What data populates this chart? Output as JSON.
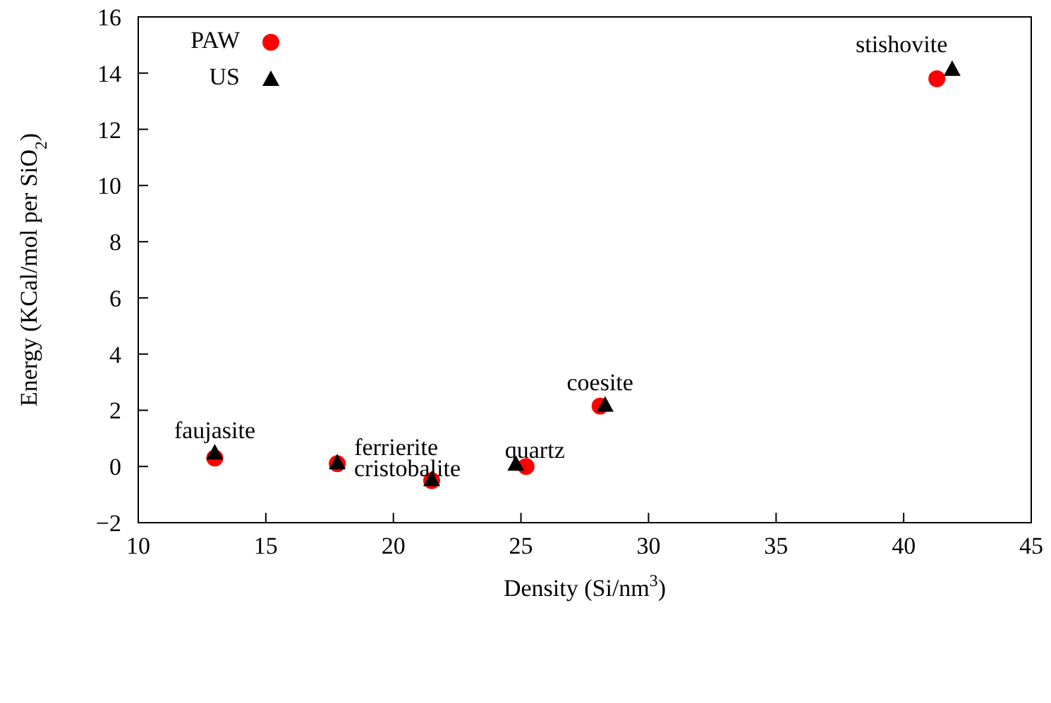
{
  "chart_data": {
    "type": "scatter",
    "xlabel": "Density (Si/nm$^{3}$)",
    "ylabel": "Energy (KCal/mol per SiO$_{2}$)",
    "xlim": [
      10,
      45
    ],
    "xticks": [
      10,
      15,
      20,
      25,
      30,
      35,
      40,
      45
    ],
    "ylim": [
      -2,
      16
    ],
    "yticks": [
      -2,
      0,
      2,
      4,
      6,
      8,
      10,
      12,
      14,
      16
    ],
    "grid": false,
    "legend": "top left",
    "series": [
      {
        "name": "PAW",
        "color": "#ff0000",
        "marker": "circle",
        "x": [
          13.0,
          17.8,
          21.5,
          25.2,
          28.1,
          41.3
        ],
        "values": [
          0.3,
          0.1,
          -0.5,
          0.0,
          2.15,
          13.8
        ]
      },
      {
        "name": "US",
        "color": "#000000",
        "marker": "triangle",
        "x": [
          13.0,
          17.8,
          21.5,
          24.8,
          28.3,
          41.9
        ],
        "values": [
          0.5,
          0.15,
          -0.45,
          0.1,
          2.2,
          14.15
        ]
      }
    ],
    "annotations": [
      {
        "text": "faujasite",
        "x": 13.0,
        "y": 0.5
      },
      {
        "text": "ferrierite",
        "x": 17.8,
        "y": 0.15
      },
      {
        "text": "cristobalite",
        "x": 21.5,
        "y": -0.45
      },
      {
        "text": "quartz",
        "x": 25.2,
        "y": 0.0
      },
      {
        "text": "coesite",
        "x": 28.1,
        "y": 2.2
      },
      {
        "text": "stishovite",
        "x": 41.3,
        "y": 14.15
      }
    ]
  }
}
